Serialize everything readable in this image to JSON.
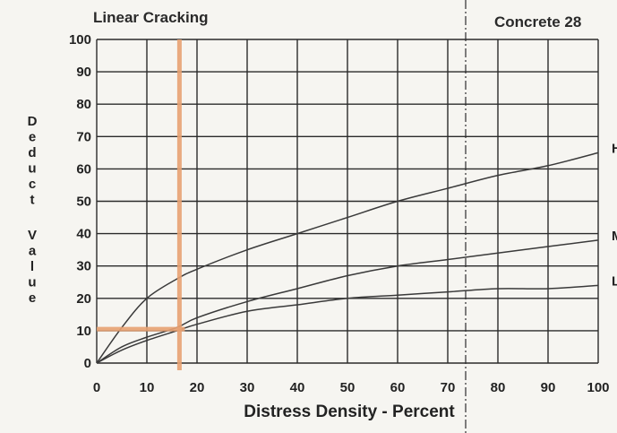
{
  "chart_data": {
    "type": "line",
    "title": "Linear Cracking",
    "subtitle": "Concrete 28",
    "xlabel": "Distress Density - Percent",
    "ylabel": "Deduct Value",
    "xlim": [
      0,
      100
    ],
    "ylim": [
      0,
      100
    ],
    "x_ticks": [
      "0",
      "10",
      "20",
      "30",
      "40",
      "50",
      "60",
      "70",
      "80",
      "90",
      "100"
    ],
    "y_ticks": [
      "0",
      "10",
      "20",
      "30",
      "40",
      "50",
      "60",
      "70",
      "80",
      "90",
      "100"
    ],
    "grid": true,
    "series": [
      {
        "name": "H",
        "x": [
          0,
          5,
          10,
          16,
          20,
          30,
          40,
          50,
          60,
          70,
          80,
          90,
          100
        ],
        "y": [
          0,
          11,
          20,
          26,
          29,
          35,
          40,
          45,
          50,
          54,
          58,
          61,
          65
        ]
      },
      {
        "name": "M",
        "x": [
          0,
          5,
          10,
          16,
          20,
          30,
          40,
          50,
          60,
          70,
          80,
          90,
          100
        ],
        "y": [
          0,
          5,
          8,
          11,
          14,
          19,
          23,
          27,
          30,
          32,
          34,
          36,
          38
        ]
      },
      {
        "name": "L",
        "x": [
          0,
          5,
          10,
          16,
          20,
          30,
          40,
          50,
          60,
          70,
          80,
          90,
          100
        ],
        "y": [
          0,
          4,
          7,
          10,
          12,
          16,
          18,
          20,
          21,
          22,
          23,
          23,
          24
        ]
      }
    ],
    "annotation": {
      "x": 16.5,
      "y": 10.5,
      "color": "#e8a273"
    },
    "colors": {
      "curve": "#3a3a3a",
      "grid": "#2b2b2b",
      "annotation": "#e8a273"
    }
  }
}
